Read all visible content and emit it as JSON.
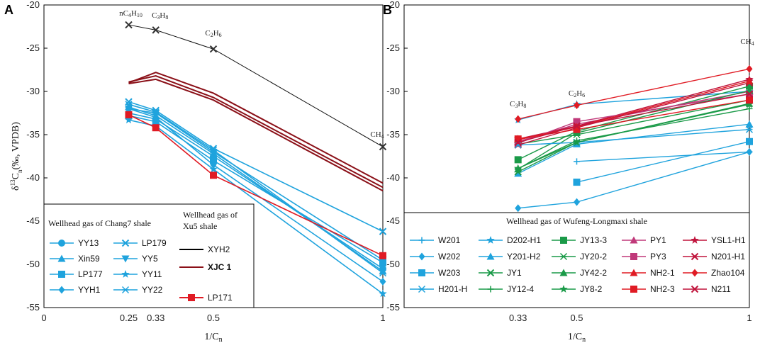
{
  "chart_data": [
    {
      "panel": "A",
      "type": "line",
      "xlabel": "1/Cn",
      "ylabel": "δ13Cn(‰, VPDB)",
      "xlim": [
        0,
        1
      ],
      "ylim": [
        -55,
        -20
      ],
      "x_ticks": [
        "0",
        "0.25",
        "0.33",
        "0.5",
        "1"
      ],
      "y_ticks": [
        "-20",
        "-25",
        "-30",
        "-35",
        "-40",
        "-45",
        "-50",
        "-55"
      ],
      "x": [
        0.25,
        0.33,
        0.5,
        1
      ],
      "annotations": [
        "nC4H10",
        "C3H8",
        "C2H6",
        "CH4"
      ],
      "legend_title_left": "Wellhead gas of Chang7 shale",
      "legend_title_right": "Wellhead gas of Xu5 shale",
      "series": [
        {
          "name": "YY13",
          "group": "Chang7",
          "color": "#1fa3dd",
          "marker": "circle",
          "values": [
            -32.5,
            -33.2,
            -37.5,
            -50.5
          ]
        },
        {
          "name": "LP179",
          "group": "Chang7",
          "color": "#1fa3dd",
          "marker": "x",
          "values": [
            -31.2,
            -32.2,
            -36.6,
            -46.2
          ]
        },
        {
          "name": "Xin59",
          "group": "Chang7",
          "color": "#1fa3dd",
          "marker": "triangle-up",
          "values": [
            -31.8,
            -32.8,
            -37.2,
            -50.8
          ]
        },
        {
          "name": "YY5",
          "group": "Chang7",
          "color": "#1fa3dd",
          "marker": "triangle-down",
          "values": [
            -32.0,
            -32.5,
            -37.0,
            -49.5
          ]
        },
        {
          "name": "LP177",
          "group": "Chang7",
          "color": "#1fa3dd",
          "marker": "square",
          "values": [
            -32.8,
            -33.5,
            -38.0,
            -49.8
          ]
        },
        {
          "name": "YY11",
          "group": "Chang7",
          "color": "#1fa3dd",
          "marker": "star",
          "values": [
            -33.3,
            -34.0,
            -39.0,
            -53.4
          ]
        },
        {
          "name": "YYH1",
          "group": "Chang7",
          "color": "#1fa3dd",
          "marker": "diamond",
          "values": [
            -32.0,
            -33.0,
            -38.5,
            -52.0
          ]
        },
        {
          "name": "YY22",
          "group": "Chang7",
          "color": "#1fa3dd",
          "marker": "asterisk",
          "values": [
            -31.5,
            -32.4,
            -36.8,
            -51.0
          ]
        },
        {
          "name": "XYH2",
          "group": "Xu5",
          "color": "#111111",
          "marker": "x",
          "values": [
            -22.3,
            -22.9,
            -25.1,
            -36.4
          ]
        },
        {
          "name": "XJC 1",
          "group": "Xu5",
          "color": "#8b1018",
          "marker": "none",
          "values": [
            -29.0,
            -27.8,
            -30.2,
            -40.6
          ]
        },
        {
          "name": "XJC 1",
          "group": "Xu5",
          "color": "#8b1018",
          "marker": "none",
          "values": [
            -28.9,
            -28.2,
            -30.7,
            -41.1
          ]
        },
        {
          "name": "XJC 1",
          "group": "Xu5",
          "color": "#8b1018",
          "marker": "none",
          "values": [
            -29.1,
            -28.6,
            -31.0,
            -41.5
          ]
        },
        {
          "name": "LP171",
          "group": "Chang7",
          "color": "#e01b24",
          "marker": "square",
          "values": [
            -32.7,
            -34.2,
            -39.7,
            -49.0
          ]
        }
      ]
    },
    {
      "panel": "B",
      "type": "line",
      "xlabel": "1/Cn",
      "xlim": [
        0,
        1
      ],
      "ylim": [
        -55,
        -20
      ],
      "x_ticks": [
        "0.33",
        "0.5",
        "1"
      ],
      "y_ticks": [
        "-20",
        "-25",
        "-30",
        "-35",
        "-40",
        "-45",
        "-50",
        "-55"
      ],
      "x": [
        0.33,
        0.5,
        1
      ],
      "annotations": [
        "C3H8",
        "C2H6",
        "CH4"
      ],
      "legend_title": "Wellhead gas of Wufeng-Longmaxi shale",
      "series": [
        {
          "name": "W201",
          "color": "#1fa3dd",
          "marker": "plus",
          "values": [
            null,
            -38.1,
            -37.0
          ]
        },
        {
          "name": "D202-H1",
          "color": "#1fa3dd",
          "marker": "star",
          "values": [
            -33.3,
            -31.5,
            -30.0
          ]
        },
        {
          "name": "JY13-3",
          "color": "#1a9a48",
          "marker": "square",
          "values": [
            -37.9,
            -34.6,
            -29.4
          ]
        },
        {
          "name": "PY1",
          "color": "#c0397a",
          "marker": "triangle-up",
          "values": [
            -35.8,
            -33.8,
            -30.0
          ]
        },
        {
          "name": "YSL1-H1",
          "color": "#c0143c",
          "marker": "star",
          "values": [
            -35.5,
            -34.0,
            -28.6
          ]
        },
        {
          "name": "W202",
          "color": "#1fa3dd",
          "marker": "diamond",
          "values": [
            -43.5,
            -42.8,
            -37.0
          ]
        },
        {
          "name": "Y201-H2",
          "color": "#1fa3dd",
          "marker": "triangle-up",
          "values": [
            -39.5,
            -36.1,
            -33.8
          ]
        },
        {
          "name": "JY20-2",
          "color": "#1a9a48",
          "marker": "asterisk",
          "values": [
            -36.1,
            -35.0,
            -31.0
          ]
        },
        {
          "name": "PY3",
          "color": "#c0397a",
          "marker": "square",
          "values": [
            -36.0,
            -33.5,
            -30.3
          ]
        },
        {
          "name": "N201-H1",
          "color": "#c0143c",
          "marker": "x",
          "values": [
            -36.2,
            -34.2,
            -29.0
          ]
        },
        {
          "name": "W203",
          "color": "#1fa3dd",
          "marker": "square",
          "values": [
            null,
            -40.5,
            -35.8
          ]
        },
        {
          "name": "JY1",
          "color": "#1a9a48",
          "marker": "x",
          "values": [
            -39.3,
            -35.9,
            -31.4
          ]
        },
        {
          "name": "JY42-2",
          "color": "#1a9a48",
          "marker": "triangle-up",
          "values": [
            -39.0,
            -34.8,
            -29.9
          ]
        },
        {
          "name": "NH2-1",
          "color": "#e01b24",
          "marker": "triangle-up",
          "values": [
            -35.6,
            -34.1,
            -28.8
          ]
        },
        {
          "name": "Zhao104",
          "color": "#e01b24",
          "marker": "diamond",
          "values": [
            -33.2,
            -31.6,
            -27.4
          ]
        },
        {
          "name": "H201-H",
          "color": "#1fa3dd",
          "marker": "asterisk",
          "values": [
            -36.2,
            -35.9,
            -34.4
          ]
        },
        {
          "name": "JY12-4",
          "color": "#1a9a48",
          "marker": "plus",
          "values": [
            -38.9,
            -35.7,
            -32.0
          ]
        },
        {
          "name": "JY8-2",
          "color": "#1a9a48",
          "marker": "star",
          "values": [
            -38.9,
            -35.9,
            -31.5
          ]
        },
        {
          "name": "NH2-3",
          "color": "#e01b24",
          "marker": "square",
          "values": [
            -35.5,
            -34.4,
            -31.0
          ]
        },
        {
          "name": "N211",
          "color": "#c0143c",
          "marker": "x",
          "values": [
            -35.9,
            -34.0,
            -30.3
          ]
        }
      ]
    }
  ],
  "panel_labels": {
    "a": "A",
    "b": "B"
  },
  "annotations_a": {
    "c4": "nC4H10",
    "c3": "C3H8",
    "c2": "C2H6",
    "c1": "CH4"
  },
  "annotations_b": {
    "c3": "C3H8",
    "c2": "C2H6",
    "c1": "CH4"
  },
  "legend_a": {
    "title_left": "Wellhead gas of Chang7 shale",
    "title_right_1": "Wellhead gas of",
    "title_right_2": "Xu5 shale",
    "entries": [
      "YY13",
      "LP179",
      "Xin59",
      "YY5",
      "LP177",
      "YY11",
      "YYH1",
      "YY22",
      "XYH2",
      "XJC 1",
      "LP171"
    ]
  },
  "legend_b": {
    "title": "Wellhead gas of Wufeng-Longmaxi shale"
  }
}
